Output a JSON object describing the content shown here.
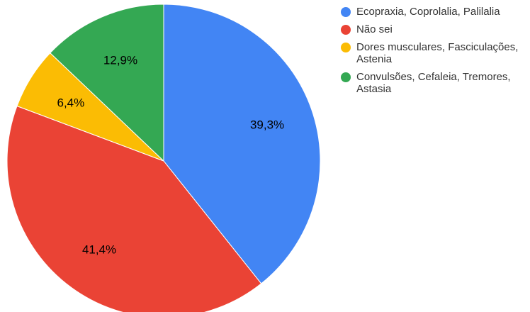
{
  "chart_data": {
    "type": "pie",
    "title": "",
    "slices": [
      {
        "label": "Ecopraxia, Coprolalia, Palilalia",
        "value": 39.3,
        "display": "39,3%",
        "color": "#4285f4"
      },
      {
        "label": "Não sei",
        "value": 41.4,
        "display": "41,4%",
        "color": "#ea4335"
      },
      {
        "label": "Dores musculares, Fasciculações, Astenia",
        "value": 6.4,
        "display": "6,4%",
        "color": "#fbbc04"
      },
      {
        "label": "Convulsões, Cefaleia, Tremores, Astasia",
        "value": 12.9,
        "display": "12,9%",
        "color": "#34a853"
      }
    ],
    "legend_position": "right"
  }
}
